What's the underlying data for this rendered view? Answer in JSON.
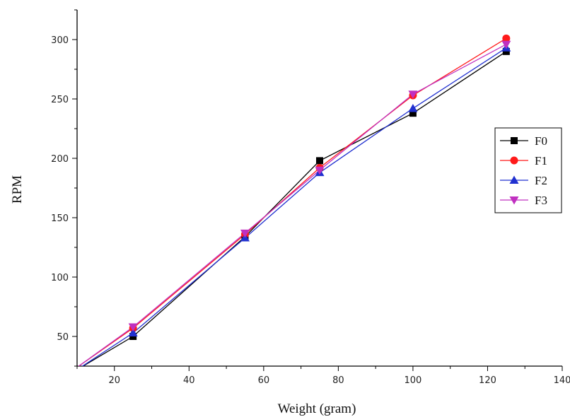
{
  "chart_data": {
    "type": "line",
    "title": "",
    "xlabel": "Weight (gram)",
    "ylabel": "RPM",
    "xlim": [
      10,
      140
    ],
    "ylim": [
      25,
      325
    ],
    "x_ticks": [
      20,
      40,
      60,
      80,
      100,
      120,
      140
    ],
    "y_ticks": [
      50,
      100,
      150,
      200,
      250,
      300
    ],
    "grid": false,
    "legend_position": "right",
    "series": [
      {
        "name": "F0",
        "color": "#000000",
        "marker": "square",
        "x": [
          10,
          25,
          55,
          75,
          100,
          125
        ],
        "y": [
          22,
          50,
          134,
          198,
          238,
          290
        ]
      },
      {
        "name": "F1",
        "color": "#ff1a1a",
        "marker": "circle",
        "x": [
          10,
          25,
          55,
          75,
          100,
          125
        ],
        "y": [
          24,
          57,
          136,
          192,
          253,
          301
        ]
      },
      {
        "name": "F2",
        "color": "#2030d0",
        "marker": "triangle-up",
        "x": [
          10,
          25,
          55,
          75,
          100,
          125
        ],
        "y": [
          22,
          53,
          133,
          188,
          242,
          293
        ]
      },
      {
        "name": "F3",
        "color": "#c030c0",
        "marker": "triangle-down",
        "x": [
          10,
          25,
          55,
          75,
          100,
          125
        ],
        "y": [
          24,
          58,
          137,
          190,
          254,
          296
        ]
      }
    ]
  }
}
